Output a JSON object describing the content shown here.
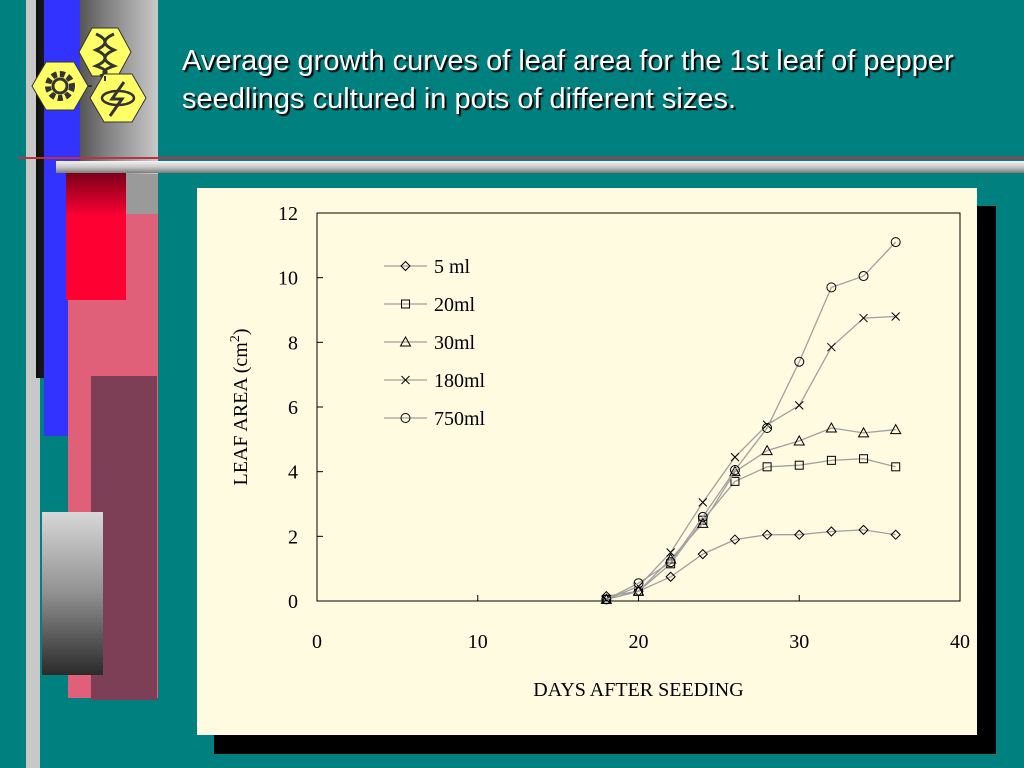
{
  "slide": {
    "title": "Average growth curves of leaf area for the 1st leaf of pepper seedlings cultured in pots of different sizes."
  },
  "colors": {
    "background": "#00807f",
    "panel": "#fffbe1",
    "series_line": "#a0a0a0",
    "marker": "#000000",
    "logo_yellow": "#ffff66"
  },
  "logo": {
    "icons": [
      "dna-icon",
      "gear-icon",
      "lightning-icon"
    ]
  },
  "chart_data": {
    "type": "line",
    "xlabel": "DAYS AFTER SEEDING",
    "ylabel": "LEAF AREA (cm",
    "ylabel_sup": "2",
    "ylabel_close": ")",
    "xlim": [
      0,
      40
    ],
    "ylim": [
      0,
      12
    ],
    "xticks": [
      0,
      10,
      20,
      30,
      40
    ],
    "yticks": [
      0,
      2,
      4,
      6,
      8,
      10,
      12
    ],
    "grid": false,
    "legend_position": "upper-left",
    "x": [
      18,
      20,
      22,
      24,
      26,
      28,
      30,
      32,
      34,
      36
    ],
    "series": [
      {
        "name": "5 ml",
        "marker": "diamond",
        "values": [
          0.15,
          0.3,
          0.75,
          1.45,
          1.9,
          2.05,
          2.05,
          2.15,
          2.2,
          2.05
        ]
      },
      {
        "name": "20ml",
        "marker": "square",
        "values": [
          0.05,
          0.3,
          1.15,
          2.5,
          3.7,
          4.15,
          4.2,
          4.35,
          4.4,
          4.15
        ]
      },
      {
        "name": "30ml",
        "marker": "triangle",
        "values": [
          0.05,
          0.3,
          1.3,
          2.4,
          4.0,
          4.65,
          4.95,
          5.35,
          5.2,
          5.3
        ]
      },
      {
        "name": "180ml",
        "marker": "x",
        "values": [
          0.05,
          0.45,
          1.5,
          3.05,
          4.45,
          5.45,
          6.05,
          7.85,
          8.75,
          8.8
        ]
      },
      {
        "name": "750ml",
        "marker": "circle",
        "values": [
          0.05,
          0.55,
          1.2,
          2.6,
          4.05,
          5.35,
          7.4,
          9.7,
          10.05,
          11.1
        ]
      }
    ]
  }
}
